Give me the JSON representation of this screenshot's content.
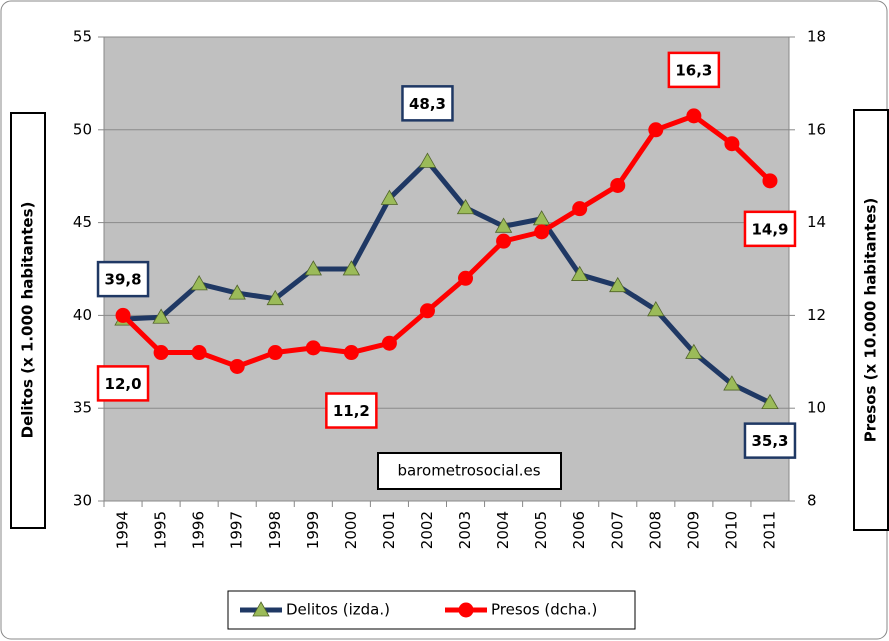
{
  "chart_data": {
    "type": "line",
    "categories": [
      "1994",
      "1995",
      "1996",
      "1997",
      "1998",
      "1999",
      "2000",
      "2001",
      "2002",
      "2003",
      "2004",
      "2005",
      "2006",
      "2007",
      "2008",
      "2009",
      "2010",
      "2011"
    ],
    "series": [
      {
        "name": "Delitos (izda.)",
        "color": "#1f3864",
        "marker_color": "#9bbb59",
        "axis": "y",
        "values": [
          39.8,
          39.9,
          41.7,
          41.2,
          40.9,
          42.5,
          42.5,
          46.3,
          48.3,
          45.8,
          44.8,
          45.2,
          42.2,
          41.6,
          40.3,
          38.0,
          36.3,
          35.3
        ],
        "value_labels": [
          "39,8",
          null,
          null,
          null,
          null,
          null,
          null,
          null,
          "48,3",
          null,
          null,
          null,
          null,
          null,
          null,
          null,
          null,
          "35,3"
        ]
      },
      {
        "name": "Presos (dcha.)",
        "color": "#ff0000",
        "marker_color": "#ff0000",
        "axis": "y2",
        "values": [
          12.0,
          11.2,
          11.2,
          10.9,
          11.2,
          11.3,
          11.2,
          11.4,
          12.1,
          12.8,
          13.6,
          13.8,
          14.3,
          14.8,
          16.0,
          16.3,
          15.7,
          14.9
        ],
        "value_labels": [
          "12,0",
          null,
          null,
          null,
          null,
          null,
          "11,2",
          null,
          null,
          null,
          null,
          null,
          null,
          null,
          null,
          "16,3",
          null,
          "14,9"
        ]
      }
    ],
    "ylabel": "Delitos (x 1.000 habitantes)",
    "y2label": "Presos (x 10.000 habitantes)",
    "annotation": "barometrosocial.es",
    "ylim": [
      30,
      55
    ],
    "yticks": [
      30,
      35,
      40,
      45,
      50,
      55
    ],
    "y2lim": [
      8,
      18
    ],
    "y2ticks": [
      8,
      10,
      12,
      14,
      16,
      18
    ],
    "grid": true,
    "legend": "bottom"
  }
}
